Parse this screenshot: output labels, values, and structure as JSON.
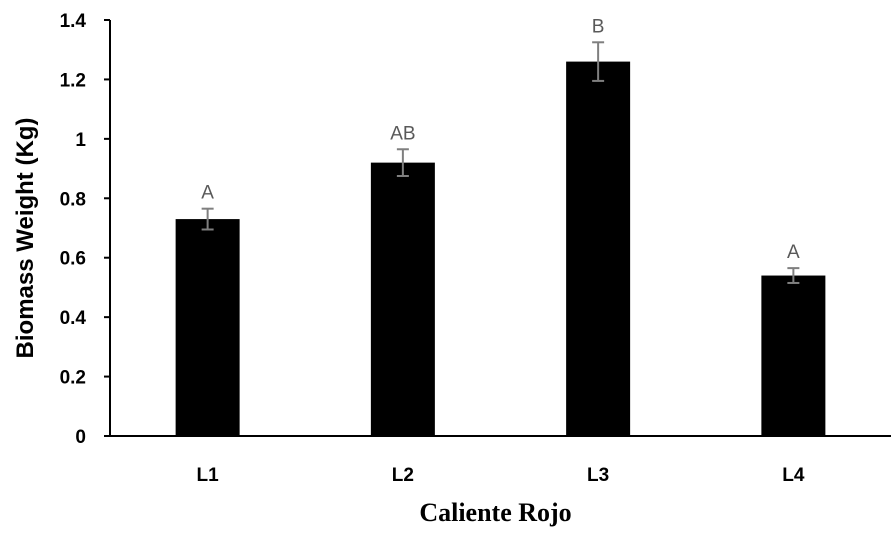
{
  "chart_data": {
    "type": "bar",
    "title": "",
    "xlabel": "Caliente Rojo",
    "ylabel": "Biomass Weight (Kg)",
    "categories": [
      "L1",
      "L2",
      "L3",
      "L4"
    ],
    "values": [
      0.73,
      0.92,
      1.26,
      0.54
    ],
    "error": [
      0.035,
      0.045,
      0.065,
      0.025
    ],
    "significance": [
      "A",
      "AB",
      "B",
      "A"
    ],
    "ylim": [
      0,
      1.4
    ],
    "yticks": [
      "0",
      "0.2",
      "0.4",
      "0.6",
      "0.8",
      "1",
      "1.2",
      "1.4"
    ],
    "grid": false,
    "colors": {
      "bar": "#000000",
      "error_bar": "#7f7f7f",
      "significance": "#595959"
    }
  }
}
